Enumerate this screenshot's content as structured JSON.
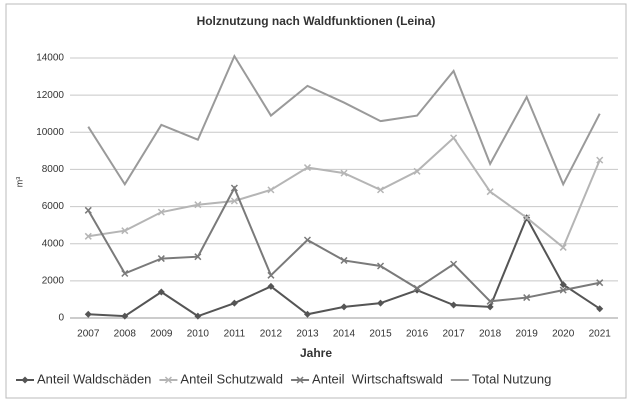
{
  "chart_data": {
    "type": "line",
    "title": "Holznutzung nach Waldfunktionen (Leina)",
    "x_label": "Jahre",
    "y_label": "m³",
    "categories": [
      "2007",
      "2008",
      "2009",
      "2010",
      "2011",
      "2012",
      "2013",
      "2014",
      "2015",
      "2016",
      "2017",
      "2018",
      "2019",
      "2020",
      "2021"
    ],
    "series": [
      {
        "name": "Anteil Waldschäden",
        "color": "#555555",
        "marker": "diamond",
        "values": [
          200,
          100,
          1400,
          100,
          800,
          1700,
          200,
          600,
          800,
          1500,
          700,
          600,
          5400,
          1800,
          500
        ]
      },
      {
        "name": "Anteil Schutzwald",
        "color": "#b5b5b5",
        "marker": "x",
        "values": [
          4400,
          4700,
          5700,
          6100,
          6300,
          6900,
          8100,
          7800,
          6900,
          7900,
          9700,
          6800,
          5400,
          3800,
          8500
        ]
      },
      {
        "name": "Anteil  Wirtschaftswald",
        "color": "#7a7a7a",
        "marker": "x",
        "values": [
          5800,
          2400,
          3200,
          3300,
          7000,
          2300,
          4200,
          3100,
          2800,
          1600,
          2900,
          900,
          1100,
          1500,
          1900
        ]
      },
      {
        "name": "Total Nutzung",
        "color": "#9a9a9a",
        "marker": "none",
        "values": [
          10300,
          7200,
          10400,
          9600,
          14100,
          10900,
          12500,
          11600,
          10600,
          10900,
          13300,
          8300,
          11900,
          7200,
          11000
        ]
      }
    ],
    "ylim": [
      0,
      14000
    ],
    "yticks": [
      0,
      2000,
      4000,
      6000,
      8000,
      10000,
      12000,
      14000
    ],
    "grid": true,
    "legend": "bottom"
  }
}
